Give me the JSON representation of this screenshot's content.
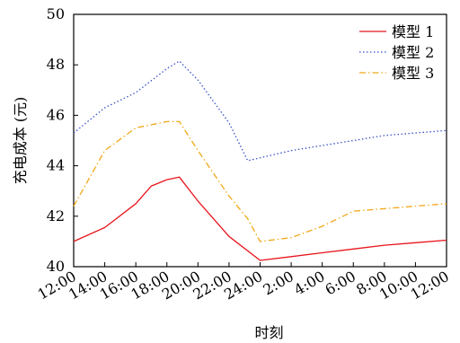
{
  "chart_data": {
    "type": "line",
    "title": "",
    "xlabel": "时刻",
    "ylabel": "充电成本 (元)",
    "x_ticks": [
      "12:00",
      "14:00",
      "16:00",
      "18:00",
      "20:00",
      "22:00",
      "24:00",
      "2:00",
      "4:00",
      "6:00",
      "8:00",
      "10:00",
      "12:00"
    ],
    "ylim": [
      40,
      50
    ],
    "y_ticks": [
      40,
      42,
      44,
      46,
      48,
      50
    ],
    "grid": false,
    "legend_position": "top-right",
    "series": [
      {
        "name": "模型 1",
        "color": "#e8141c",
        "dash": "solid",
        "points": [
          [
            0,
            41.0
          ],
          [
            1,
            41.55
          ],
          [
            2,
            42.5
          ],
          [
            2.5,
            43.2
          ],
          [
            3,
            43.45
          ],
          [
            3.4,
            43.55
          ],
          [
            4,
            42.6
          ],
          [
            5,
            41.2
          ],
          [
            6,
            40.25
          ],
          [
            7,
            40.4
          ],
          [
            8,
            40.55
          ],
          [
            9,
            40.7
          ],
          [
            10,
            40.85
          ],
          [
            11,
            40.95
          ],
          [
            12,
            41.05
          ]
        ]
      },
      {
        "name": "模型 2",
        "color": "#3a52c8",
        "dash": "dotted",
        "points": [
          [
            0,
            45.3
          ],
          [
            1,
            46.3
          ],
          [
            2,
            46.9
          ],
          [
            3,
            47.85
          ],
          [
            3.4,
            48.15
          ],
          [
            4,
            47.4
          ],
          [
            5,
            45.7
          ],
          [
            5.6,
            44.2
          ],
          [
            7,
            44.6
          ],
          [
            8,
            44.8
          ],
          [
            9,
            45.0
          ],
          [
            10,
            45.2
          ],
          [
            11,
            45.3
          ],
          [
            12,
            45.4
          ]
        ]
      },
      {
        "name": "模型 3",
        "color": "#f0a818",
        "dash": "dashdot",
        "points": [
          [
            0,
            42.4
          ],
          [
            1,
            44.6
          ],
          [
            2,
            45.5
          ],
          [
            3,
            45.75
          ],
          [
            3.4,
            45.75
          ],
          [
            4,
            44.6
          ],
          [
            5,
            42.8
          ],
          [
            5.6,
            41.9
          ],
          [
            6,
            41.0
          ],
          [
            7,
            41.15
          ],
          [
            8,
            41.6
          ],
          [
            9,
            42.2
          ],
          [
            10,
            42.3
          ],
          [
            11,
            42.4
          ],
          [
            12,
            42.5
          ]
        ]
      }
    ]
  }
}
